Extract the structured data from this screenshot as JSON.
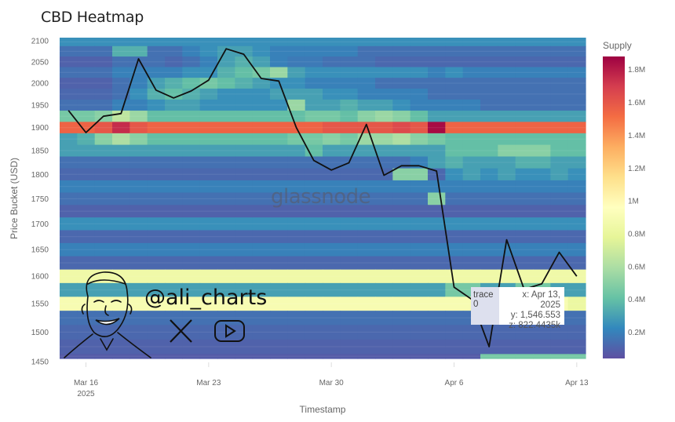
{
  "chart_data": {
    "type": "heatmap",
    "title": "CBD Heatmap",
    "xlabel": "Timestamp",
    "ylabel": "Price Bucket (USD)",
    "colorbar_title": "Supply",
    "colorbar_ticks": [
      "0.2M",
      "0.4M",
      "0.6M",
      "0.8M",
      "1M",
      "1.2M",
      "1.4M",
      "1.6M",
      "1.8M"
    ],
    "colorbar_tick_values": [
      200,
      400,
      600,
      800,
      1000,
      1200,
      1400,
      1600,
      1800
    ],
    "zlim_k": [
      40,
      1880
    ],
    "colorscale": "Spectral (reversed)",
    "colors": [
      "#5e4fa2",
      "#3288bd",
      "#66c2a5",
      "#abdda4",
      "#e6f598",
      "#ffffbf",
      "#fee08b",
      "#fdae61",
      "#f46d43",
      "#d53e4f",
      "#9e0142"
    ],
    "y_scale": "log",
    "ylim": [
      1455,
      2108
    ],
    "y_ticks": [
      1450,
      1500,
      1550,
      1600,
      1650,
      1700,
      1750,
      1800,
      1850,
      1900,
      1950,
      2000,
      2050,
      2100
    ],
    "x_ticks": [
      {
        "date": "2025-03-16",
        "label": "Mar 16",
        "sublabel": "2025"
      },
      {
        "date": "2025-03-23",
        "label": "Mar 23"
      },
      {
        "date": "2025-03-30",
        "label": "Mar 30"
      },
      {
        "date": "2025-04-06",
        "label": "Apr 6"
      },
      {
        "date": "2025-04-13",
        "label": "Apr 13"
      }
    ],
    "dates": [
      "2025-03-15",
      "2025-03-16",
      "2025-03-17",
      "2025-03-18",
      "2025-03-19",
      "2025-03-20",
      "2025-03-21",
      "2025-03-22",
      "2025-03-23",
      "2025-03-24",
      "2025-03-25",
      "2025-03-26",
      "2025-03-27",
      "2025-03-28",
      "2025-03-29",
      "2025-03-30",
      "2025-03-31",
      "2025-04-01",
      "2025-04-02",
      "2025-04-03",
      "2025-04-04",
      "2025-04-05",
      "2025-04-06",
      "2025-04-07",
      "2025-04-08",
      "2025-04-09",
      "2025-04-10",
      "2025-04-11",
      "2025-04-12",
      "2025-04-13"
    ],
    "price_line": [
      1938,
      1889,
      1925,
      1931,
      2057,
      1984,
      1966,
      1982,
      2007,
      2081,
      2068,
      2011,
      2005,
      1900,
      1829,
      1809,
      1824,
      1907,
      1798,
      1818,
      1818,
      1807,
      1580,
      1558,
      1475,
      1669,
      1576,
      1586,
      1645,
      1600
    ],
    "line_color": "#111111",
    "heatmap_rows": [
      {
        "y": 2100,
        "z_k": 250
      },
      {
        "y": 2075,
        "z_k": [
          150,
          150,
          150,
          350,
          350,
          150,
          150,
          200,
          250,
          300,
          300,
          250,
          200,
          200,
          200,
          200,
          200,
          150,
          150,
          150,
          150,
          150,
          150,
          150,
          150,
          150,
          150,
          150,
          150,
          150
        ]
      },
      {
        "y": 2050,
        "z_k": [
          100,
          100,
          100,
          150,
          150,
          150,
          120,
          150,
          200,
          300,
          350,
          300,
          200,
          180,
          180,
          150,
          150,
          150,
          120,
          120,
          120,
          120,
          120,
          120,
          120,
          120,
          120,
          120,
          120,
          120
        ]
      },
      {
        "y": 2025,
        "z_k": [
          150,
          150,
          150,
          200,
          200,
          200,
          200,
          250,
          250,
          350,
          400,
          450,
          550,
          300,
          250,
          250,
          250,
          250,
          250,
          250,
          250,
          200,
          250,
          200,
          200,
          200,
          200,
          200,
          200,
          200
        ]
      },
      {
        "y": 2000,
        "z_k": [
          100,
          100,
          100,
          150,
          200,
          300,
          350,
          400,
          450,
          400,
          350,
          300,
          250,
          250,
          200,
          200,
          200,
          200,
          150,
          150,
          150,
          150,
          150,
          150,
          150,
          150,
          150,
          150,
          150,
          150
        ]
      },
      {
        "y": 1975,
        "z_k": [
          120,
          120,
          120,
          150,
          250,
          350,
          400,
          350,
          300,
          250,
          250,
          250,
          300,
          300,
          300,
          250,
          250,
          200,
          200,
          200,
          200,
          150,
          150,
          150,
          150,
          150,
          150,
          150,
          150,
          150
        ]
      },
      {
        "y": 1950,
        "z_k": [
          150,
          150,
          150,
          200,
          200,
          250,
          300,
          300,
          250,
          250,
          250,
          250,
          250,
          550,
          300,
          300,
          350,
          300,
          300,
          250,
          200,
          200,
          200,
          200,
          150,
          150,
          150,
          150,
          150,
          150
        ]
      },
      {
        "y": 1925,
        "z_k": [
          450,
          450,
          500,
          650,
          550,
          400,
          400,
          400,
          400,
          400,
          400,
          400,
          400,
          400,
          450,
          450,
          400,
          500,
          550,
          500,
          400,
          300,
          300,
          300,
          300,
          300,
          300,
          300,
          300,
          300
        ]
      },
      {
        "y": 1900,
        "z_k": [
          1550,
          1550,
          1600,
          1750,
          1600,
          1550,
          1550,
          1550,
          1550,
          1550,
          1550,
          1550,
          1550,
          1550,
          1550,
          1600,
          1600,
          1600,
          1600,
          1650,
          1600,
          1850,
          1550,
          1550,
          1550,
          1550,
          1550,
          1550,
          1550,
          1550
        ]
      },
      {
        "y": 1875,
        "z_k": [
          300,
          350,
          500,
          600,
          500,
          400,
          400,
          400,
          400,
          400,
          400,
          400,
          400,
          450,
          450,
          500,
          450,
          550,
          550,
          600,
          500,
          450,
          400,
          400,
          400,
          400,
          400,
          400,
          400,
          400
        ]
      },
      {
        "y": 1850,
        "z_k": [
          300,
          300,
          300,
          300,
          300,
          300,
          300,
          300,
          300,
          300,
          300,
          300,
          300,
          300,
          400,
          300,
          300,
          300,
          300,
          300,
          300,
          300,
          400,
          400,
          400,
          500,
          500,
          500,
          400,
          400
        ]
      },
      {
        "y": 1825,
        "z_k": [
          150,
          150,
          150,
          150,
          150,
          150,
          150,
          150,
          150,
          150,
          150,
          150,
          150,
          150,
          150,
          150,
          150,
          150,
          150,
          150,
          200,
          300,
          350,
          300,
          300,
          300,
          350,
          350,
          300,
          300
        ]
      },
      {
        "y": 1800,
        "z_k": [
          120,
          120,
          120,
          120,
          120,
          120,
          120,
          120,
          120,
          120,
          120,
          120,
          120,
          120,
          120,
          120,
          120,
          120,
          120,
          500,
          500,
          120,
          250,
          300,
          250,
          300,
          250,
          250,
          300,
          250
        ]
      },
      {
        "y": 1775,
        "z_k": 200
      },
      {
        "y": 1750,
        "z_k": [
          150,
          150,
          150,
          150,
          150,
          150,
          150,
          150,
          150,
          150,
          150,
          150,
          150,
          150,
          150,
          150,
          150,
          150,
          150,
          150,
          150,
          500,
          150,
          150,
          150,
          150,
          150,
          150,
          150,
          150
        ]
      },
      {
        "y": 1725,
        "z_k": 100
      },
      {
        "y": 1700,
        "z_k": 250
      },
      {
        "y": 1675,
        "z_k": 120
      },
      {
        "y": 1650,
        "z_k": 200
      },
      {
        "y": 1625,
        "z_k": 120
      },
      {
        "y": 1600,
        "z_k": 850
      },
      {
        "y": 1575,
        "z_k": [
          300,
          300,
          300,
          300,
          300,
          300,
          300,
          300,
          300,
          300,
          300,
          300,
          300,
          300,
          300,
          300,
          300,
          300,
          300,
          300,
          300,
          300,
          450,
          450,
          300,
          300,
          450,
          450,
          300,
          300
        ]
      },
      {
        "y": 1550,
        "z_k": [
          900,
          900,
          900,
          900,
          900,
          900,
          900,
          900,
          900,
          900,
          900,
          900,
          900,
          900,
          900,
          900,
          900,
          900,
          900,
          900,
          900,
          900,
          900,
          900,
          900,
          900,
          900,
          900,
          900,
          822
        ]
      },
      {
        "y": 1525,
        "z_k": 150
      },
      {
        "y": 1500,
        "z_k": 120
      },
      {
        "y": 1475,
        "z_k": 100
      },
      {
        "y": 1450,
        "z_k": [
          80,
          80,
          80,
          80,
          80,
          80,
          80,
          80,
          80,
          80,
          80,
          80,
          80,
          80,
          80,
          80,
          80,
          80,
          80,
          80,
          80,
          80,
          80,
          80,
          450,
          450,
          450,
          450,
          450,
          450
        ]
      }
    ]
  },
  "tooltip": {
    "trace": "trace 0",
    "x": "x: Apr 13, 2025",
    "y": "y: 1,546.553",
    "z": "z: 822.4435k"
  },
  "watermark": "glassnode",
  "overlay": {
    "handle": "@ali_charts",
    "icons": [
      "x-logo-icon",
      "youtube-icon"
    ]
  }
}
